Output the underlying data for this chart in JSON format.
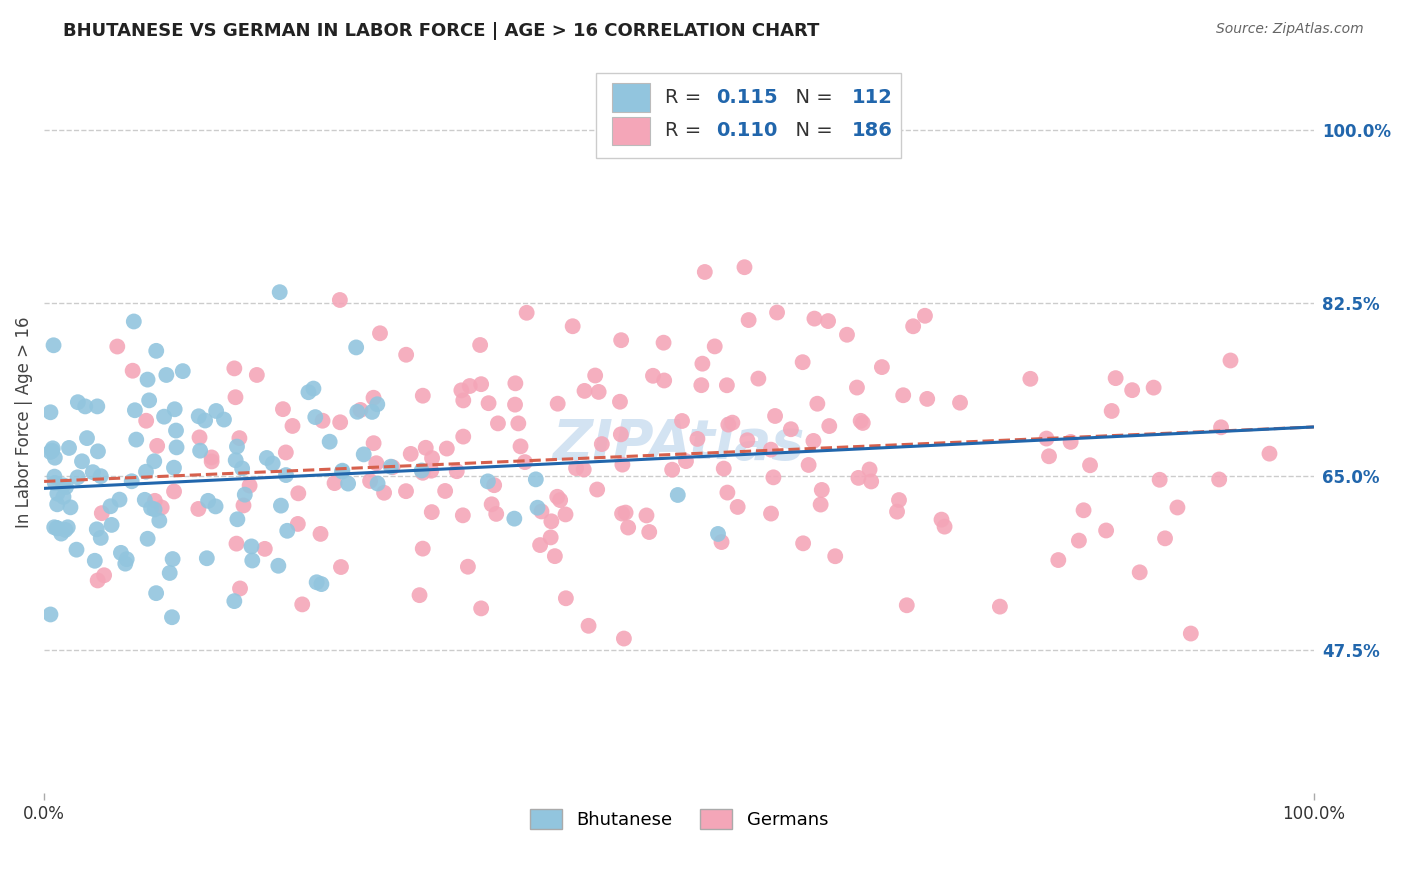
{
  "title": "BHUTANESE VS GERMAN IN LABOR FORCE | AGE > 16 CORRELATION CHART",
  "source": "Source: ZipAtlas.com",
  "ylabel": "In Labor Force | Age > 16",
  "xlim": [
    0,
    1
  ],
  "ylim": [
    0.33,
    1.08
  ],
  "ytick_vals": [
    0.475,
    0.65,
    0.825,
    1.0
  ],
  "ytick_labels": [
    "47.5%",
    "65.0%",
    "82.5%",
    "100.0%"
  ],
  "xtick_vals": [
    0.0,
    1.0
  ],
  "xtick_labels": [
    "0.0%",
    "100.0%"
  ],
  "background_color": "#ffffff",
  "grid_color": "#cccccc",
  "blue_scatter_color": "#92c5de",
  "blue_line_color": "#2166ac",
  "pink_scatter_color": "#f4a6b8",
  "pink_line_color": "#d6604d",
  "watermark": "ZIPAtlas",
  "legend_R_blue": "0.115",
  "legend_N_blue": "112",
  "legend_R_pink": "0.110",
  "legend_N_pink": "186",
  "blue_trend_x": [
    0.0,
    1.0
  ],
  "blue_trend_y": [
    0.638,
    0.7
  ],
  "pink_trend_x": [
    0.0,
    1.0
  ],
  "pink_trend_y": [
    0.645,
    0.7
  ],
  "title_fontsize": 13,
  "source_fontsize": 10,
  "tick_fontsize": 12,
  "legend_fontsize": 14
}
